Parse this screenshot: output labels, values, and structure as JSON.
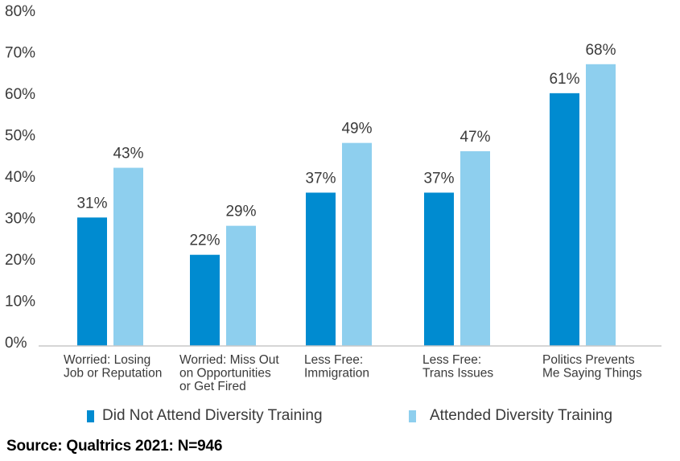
{
  "chart_data": {
    "type": "bar",
    "title": "",
    "xlabel": "",
    "ylabel": "",
    "ylim": [
      0,
      80
    ],
    "yticks": [
      "0%",
      "10%",
      "20%",
      "30%",
      "40%",
      "50%",
      "60%",
      "70%",
      "80%"
    ],
    "grid": false,
    "legend_position": "bottom",
    "categories": [
      [
        "Worried: Losing",
        "Job or Reputation"
      ],
      [
        "Worried: Miss Out",
        "on Opportunities",
        "or Get Fired"
      ],
      [
        "Less Free:",
        "Immigration"
      ],
      [
        "Less Free:",
        "Trans Issues"
      ],
      [
        "Politics Prevents",
        "Me Saying Things"
      ]
    ],
    "series": [
      {
        "name": "Did Not Attend Diversity Training",
        "color": "#008bd0",
        "values": [
          31,
          22,
          37,
          37,
          61
        ],
        "labels": [
          "31%",
          "22%",
          "37%",
          "37%",
          "61%"
        ]
      },
      {
        "name": "Attended Diversity Training",
        "color": "#8ecfee",
        "values": [
          43,
          29,
          49,
          47,
          68
        ],
        "labels": [
          "43%",
          "29%",
          "49%",
          "47%",
          "68%"
        ]
      }
    ]
  },
  "source": "Source: Qualtrics 2021: N=946"
}
